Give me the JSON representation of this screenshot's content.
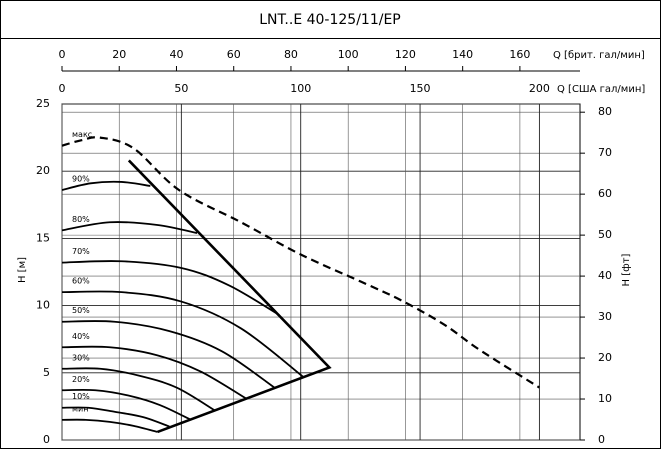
{
  "chart_data": {
    "type": "line",
    "title": "LNT..E 40-125/11/EP",
    "x_label": "Q [США гал/мин]",
    "x2_label": "Q [брит. гал/мин]",
    "y_label": "H [м]",
    "y2_label": "H [фт]",
    "xlim": [
      0,
      217
    ],
    "xticks": [
      0,
      50,
      100,
      150,
      200
    ],
    "x2lim": [
      0,
      181
    ],
    "x2ticks": [
      0,
      20,
      40,
      60,
      80,
      100,
      120,
      140,
      160
    ],
    "ylim": [
      0,
      25
    ],
    "yticks": [
      0,
      5,
      10,
      15,
      20,
      25
    ],
    "y2lim": [
      0,
      82
    ],
    "y2ticks": [
      0,
      10,
      20,
      30,
      40,
      50,
      60,
      70,
      80
    ],
    "grid": true,
    "color": "#000000",
    "series": [
      {
        "name": "макс",
        "dash": true,
        "x": [
          0,
          8,
          16,
          30,
          49,
          75,
          100,
          125,
          142,
          160,
          175,
          200
        ],
        "values": [
          21.9,
          22.3,
          22.5,
          21.7,
          18.6,
          16.2,
          13.8,
          11.8,
          10.4,
          8.6,
          6.7,
          3.9
        ]
      },
      {
        "name": "90%",
        "x": [
          0,
          12,
          25,
          37
        ],
        "values": [
          18.6,
          19.1,
          19.2,
          18.9
        ]
      },
      {
        "name": "80%",
        "x": [
          0,
          20,
          40,
          56.6
        ],
        "values": [
          15.6,
          16.2,
          16.0,
          15.4
        ]
      },
      {
        "name": "70%",
        "x": [
          0,
          25,
          50,
          70,
          91
        ],
        "values": [
          13.2,
          13.3,
          12.8,
          11.5,
          9.3
        ]
      },
      {
        "name": "60%",
        "x": [
          0,
          25,
          50,
          75,
          101
        ],
        "values": [
          11.0,
          11.0,
          10.3,
          8.3,
          4.7
        ]
      },
      {
        "name": "50%",
        "x": [
          0,
          22,
          45,
          67,
          89
        ],
        "values": [
          8.8,
          8.8,
          8.1,
          6.6,
          3.9
        ]
      },
      {
        "name": "40%",
        "x": [
          0,
          20,
          40,
          58,
          77
        ],
        "values": [
          6.9,
          6.9,
          6.3,
          5.1,
          3.1
        ]
      },
      {
        "name": "30%",
        "x": [
          0,
          16,
          32,
          48,
          64
        ],
        "values": [
          5.3,
          5.3,
          4.8,
          3.9,
          2.2
        ]
      },
      {
        "name": "20%",
        "x": [
          0,
          14,
          28,
          41,
          54
        ],
        "values": [
          3.7,
          3.7,
          3.3,
          2.6,
          1.5
        ]
      },
      {
        "name": "10%",
        "x": [
          0,
          11,
          22,
          34,
          45
        ],
        "values": [
          2.4,
          2.4,
          2.1,
          1.7,
          1.0
        ]
      },
      {
        "name": "мин",
        "x": [
          0,
          10,
          20,
          30,
          40
        ],
        "values": [
          1.5,
          1.5,
          1.35,
          1.05,
          0.6
        ]
      }
    ],
    "envelope": {
      "x": [
        28,
        112,
        40
      ],
      "values": [
        20.8,
        5.4,
        0.6
      ]
    }
  }
}
